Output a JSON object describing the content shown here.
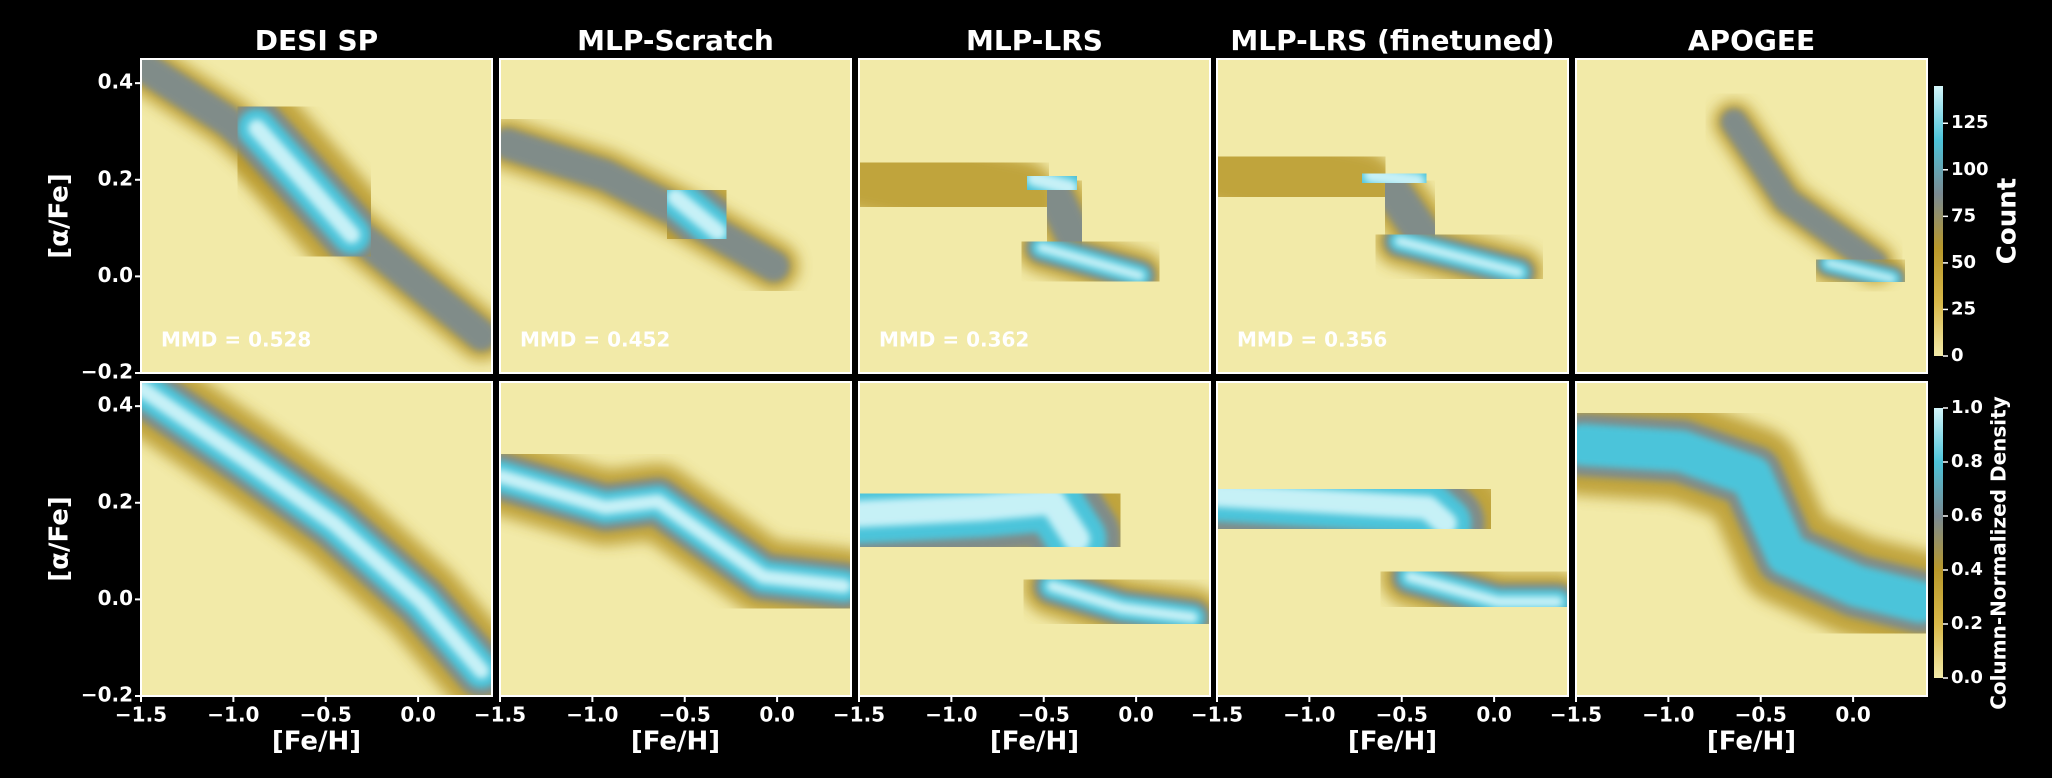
{
  "chart_data": [
    {
      "type": "heatmap",
      "title": "DESI SP",
      "ylabel": "[α/Fe]",
      "annotation": "MMD = 0.528",
      "xlim": [
        -1.5,
        0.4
      ],
      "ylim": [
        -0.2,
        0.45
      ],
      "yticks": [
        {
          "value": -0.2,
          "label": "−0.2"
        },
        {
          "value": 0,
          "label": "0.0"
        },
        0.2,
        0.4
      ]
    },
    {
      "type": "heatmap",
      "title": "MLP-Scratch",
      "annotation": "MMD = 0.452",
      "xlim": [
        -1.5,
        0.4
      ],
      "ylim": [
        -0.2,
        0.45
      ]
    },
    {
      "type": "heatmap",
      "title": "MLP-LRS",
      "annotation": "MMD = 0.362",
      "xlim": [
        -1.5,
        0.4
      ],
      "ylim": [
        -0.2,
        0.45
      ]
    },
    {
      "type": "heatmap",
      "title": "MLP-LRS (finetuned)",
      "annotation": "MMD = 0.356",
      "xlim": [
        -1.5,
        0.4
      ],
      "ylim": [
        -0.2,
        0.45
      ]
    },
    {
      "type": "heatmap",
      "title": "APOGEE",
      "xlim": [
        -1.5,
        0.4
      ],
      "ylim": [
        -0.2,
        0.45
      ],
      "colorbar": {
        "label": "Count",
        "lim": [
          0,
          145
        ],
        "ticks": [
          0,
          25,
          50,
          75,
          100,
          125
        ],
        "colors": [
          "#f2eaa8",
          "#d8b848",
          "#b8982a",
          "#7a8a92",
          "#4cc4da",
          "#d4f6fa"
        ]
      }
    },
    {
      "type": "heatmap",
      "xlabel": "[Fe/H]",
      "ylabel": "[α/Fe]",
      "xlim": [
        -1.5,
        0.4
      ],
      "ylim": [
        -0.2,
        0.45
      ],
      "xticks": [
        {
          "value": -1.5,
          "label": "−1.5"
        },
        {
          "value": -1,
          "label": "−1.0"
        },
        {
          "value": -0.5,
          "label": "−0.5"
        },
        {
          "value": 0,
          "label": "0.0"
        }
      ],
      "yticks": [
        {
          "value": -0.2,
          "label": "−0.2"
        },
        {
          "value": 0,
          "label": "0.0"
        },
        0.2,
        0.4
      ]
    },
    {
      "type": "heatmap",
      "xlabel": "[Fe/H]",
      "xlim": [
        -1.5,
        0.4
      ],
      "ylim": [
        -0.2,
        0.45
      ],
      "xticks": [
        {
          "value": -1.5,
          "label": "−1.5"
        },
        {
          "value": -1,
          "label": "−1.0"
        },
        {
          "value": -0.5,
          "label": "−0.5"
        },
        {
          "value": 0,
          "label": "0.0"
        }
      ]
    },
    {
      "type": "heatmap",
      "xlabel": "[Fe/H]",
      "xlim": [
        -1.5,
        0.4
      ],
      "ylim": [
        -0.2,
        0.45
      ],
      "xticks": [
        {
          "value": -1.5,
          "label": "−1.5"
        },
        {
          "value": -1,
          "label": "−1.0"
        },
        {
          "value": -0.5,
          "label": "−0.5"
        },
        {
          "value": 0,
          "label": "0.0"
        }
      ]
    },
    {
      "type": "heatmap",
      "xlabel": "[Fe/H]",
      "xlim": [
        -1.5,
        0.4
      ],
      "ylim": [
        -0.2,
        0.45
      ],
      "xticks": [
        {
          "value": -1.5,
          "label": "−1.5"
        },
        {
          "value": -1,
          "label": "−1.0"
        },
        {
          "value": -0.5,
          "label": "−0.5"
        },
        {
          "value": 0,
          "label": "0.0"
        }
      ]
    },
    {
      "type": "heatmap",
      "xlabel": "[Fe/H]",
      "xlim": [
        -1.5,
        0.4
      ],
      "ylim": [
        -0.2,
        0.45
      ],
      "xticks": [
        {
          "value": -1.5,
          "label": "−1.5"
        },
        {
          "value": -1,
          "label": "−1.0"
        },
        {
          "value": -0.5,
          "label": "−0.5"
        },
        {
          "value": 0,
          "label": "0.0"
        }
      ],
      "colorbar": {
        "label": "Column-Normalized Density",
        "lim": [
          0,
          1
        ],
        "ticks": [
          {
            "value": 0,
            "label": "0.0"
          },
          0.2,
          0.4,
          0.6,
          0.8,
          {
            "value": 1,
            "label": "1.0"
          }
        ],
        "colors": [
          "#f2eaa8",
          "#d8b848",
          "#b8982a",
          "#7a8a92",
          "#4cc4da",
          "#d4f6fa"
        ]
      }
    }
  ]
}
